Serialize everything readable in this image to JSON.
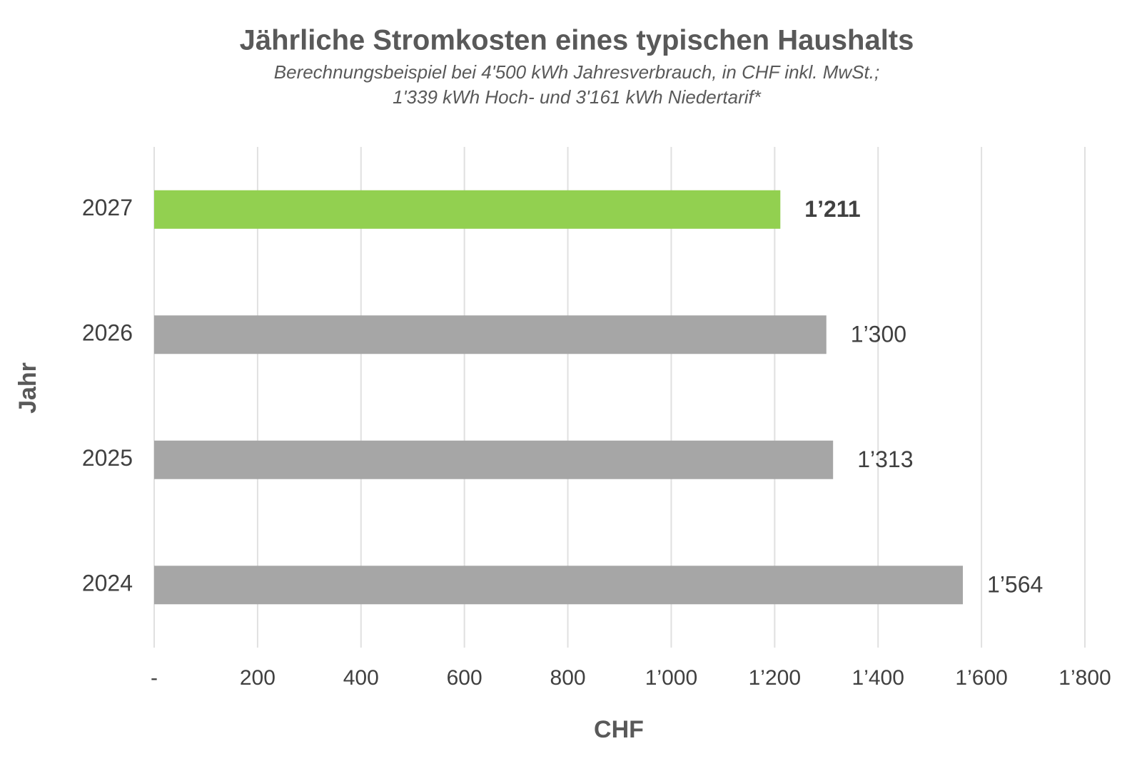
{
  "chart_data": {
    "type": "hbar",
    "title": "Jährliche Stromkosten eines typischen Haushalts",
    "subtitle": [
      "Berechnungsbeispiel bei 4'500 kWh Jahresverbrauch, in CHF inkl. MwSt.;",
      "1'339 kWh Hoch- und 3'161 kWh Niedertarif*"
    ],
    "x_label": "CHF",
    "y_label": "Jahr",
    "categories": [
      "2027",
      "2026",
      "2025",
      "2024"
    ],
    "values": [
      1211,
      1300,
      1313,
      1564
    ],
    "value_labels": [
      "1’211",
      "1’300",
      "1’313",
      "1’564"
    ],
    "value_label_weight": [
      "bold",
      "normal",
      "normal",
      "normal"
    ],
    "colors": [
      "#92d050",
      "#a6a6a6",
      "#a6a6a6",
      "#a6a6a6"
    ],
    "xlim": [
      0,
      1800
    ],
    "xticks": [
      {
        "value": 0,
        "label": "-"
      },
      200,
      400,
      600,
      800,
      {
        "value": 1000,
        "label": "1’000"
      },
      {
        "value": 1200,
        "label": "1’200"
      },
      {
        "value": 1400,
        "label": "1’400"
      },
      {
        "value": 1600,
        "label": "1’600"
      },
      {
        "value": 1800,
        "label": "1’800"
      }
    ],
    "grid": true
  }
}
